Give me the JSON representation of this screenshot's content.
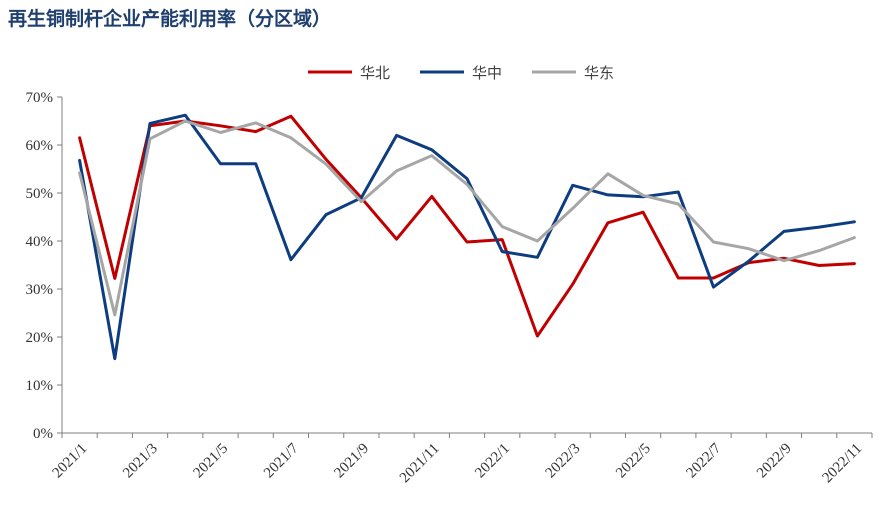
{
  "title": "再生铜制杆企业产能利用率（分区域）",
  "chart_data": {
    "type": "line",
    "title": "再生铜制杆企业产能利用率（分区域）",
    "x": [
      "2021/1",
      "2021/2",
      "2021/3",
      "2021/4",
      "2021/5",
      "2021/6",
      "2021/7",
      "2021/8",
      "2021/9",
      "2021/10",
      "2021/11",
      "2021/12",
      "2022/1",
      "2022/2",
      "2022/3",
      "2022/4",
      "2022/5",
      "2022/6",
      "2022/7",
      "2022/8",
      "2022/9",
      "2022/10",
      "2022/11"
    ],
    "x_tick_labels": [
      "2021/1",
      "2021/3",
      "2021/5",
      "2021/7",
      "2021/9",
      "2021/11",
      "2022/1",
      "2022/3",
      "2022/5",
      "2022/7",
      "2022/9",
      "2022/11"
    ],
    "y_tick_labels": [
      "0%",
      "10%",
      "20%",
      "30%",
      "40%",
      "50%",
      "60%",
      "70%"
    ],
    "ylim": [
      0,
      70
    ],
    "y_unit": "%",
    "legend_position": "top",
    "grid": false,
    "series": [
      {
        "name": "华北",
        "color": "#c00000",
        "values": [
          61.5,
          32.2,
          64.0,
          65.0,
          64.0,
          62.8,
          66.0,
          57.0,
          49.0,
          40.4,
          49.3,
          39.8,
          40.3,
          20.2,
          31.0,
          43.8,
          46.0,
          32.3,
          32.3,
          35.5,
          36.4,
          34.9,
          35.3
        ]
      },
      {
        "name": "华中",
        "color": "#0d3d80",
        "values": [
          56.8,
          15.5,
          64.5,
          66.2,
          56.1,
          56.1,
          36.1,
          45.5,
          49.0,
          62.0,
          59.0,
          53.0,
          37.8,
          36.6,
          51.6,
          49.6,
          49.2,
          50.2,
          30.4,
          35.8,
          42.0,
          42.9,
          44.0
        ]
      },
      {
        "name": "华东",
        "color": "#a6a6a6",
        "values": [
          54.2,
          24.6,
          61.3,
          65.0,
          62.6,
          64.6,
          61.5,
          56.0,
          48.2,
          54.6,
          57.8,
          51.8,
          43.0,
          40.0,
          46.8,
          54.0,
          49.5,
          47.7,
          39.8,
          38.4,
          35.9,
          38.0,
          40.7
        ]
      }
    ]
  }
}
